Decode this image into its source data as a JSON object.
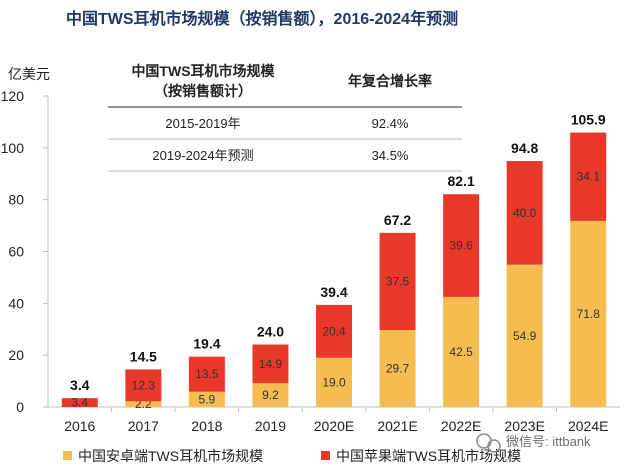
{
  "chart_data": {
    "type": "bar",
    "stacked": true,
    "title": "中国TWS耳机市场规模（按销售额），2016-2024年预测",
    "ylabel": "亿美元",
    "ylim": [
      0,
      120
    ],
    "yticks": [
      "0",
      "20",
      "40",
      "60",
      "80",
      "100",
      "120"
    ],
    "categories": [
      "2016",
      "2017",
      "2018",
      "2019",
      "2020E",
      "2021E",
      "2022E",
      "2023E",
      "2024E"
    ],
    "series": [
      {
        "name": "中国安卓端TWS耳机市场规模",
        "color": "#f5bd4f",
        "values": [
          0,
          2.2,
          5.9,
          9.2,
          19.0,
          29.7,
          42.5,
          54.9,
          71.8
        ],
        "labels": [
          "",
          "2.2",
          "5.9",
          "9.2",
          "19.0",
          "29.7",
          "42.5",
          "54.9",
          "71.8"
        ]
      },
      {
        "name": "中国苹果端TWS耳机市场规模",
        "color": "#e8382a",
        "values": [
          3.4,
          12.3,
          13.5,
          14.9,
          20.4,
          37.5,
          39.6,
          40.0,
          34.1
        ],
        "labels": [
          "3.4",
          "12.3",
          "13.5",
          "14.9",
          "20.4",
          "37.5",
          "39.6",
          "40.0",
          "34.1"
        ]
      }
    ],
    "totals": [
      "3.4",
      "14.5",
      "19.4",
      "24.0",
      "39.4",
      "67.2",
      "82.1",
      "94.8",
      "105.9"
    ],
    "legend_position": "bottom"
  },
  "table": {
    "header_col1": [
      "中国TWS耳机市场规模",
      "（按销售额计）"
    ],
    "header_col2": "年复合增长率",
    "rows": [
      {
        "period": "2015-2019年",
        "rate": "92.4%"
      },
      {
        "period": "2019-2024年预测",
        "rate": "34.5%"
      }
    ]
  },
  "watermark": "微信号: ittbank",
  "colors": {
    "android": "#f5bd4f",
    "apple": "#e8382a",
    "title": "#1f3864"
  }
}
